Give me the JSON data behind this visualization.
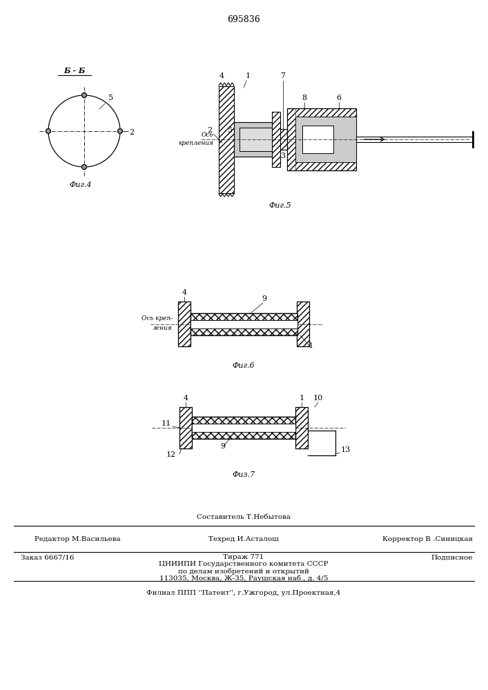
{
  "patent_number": "695836",
  "bg_color": "#ffffff",
  "line_color": "#000000",
  "fig4_label": "Фиг.4",
  "fig5_label": "Фиг.5",
  "fig6_label": "Фиг.6",
  "fig7_label": "Физ.7",
  "section_label": "Б - Б",
  "axis_label_1": "Ось",
  "axis_label_2": "крепления",
  "axis_label_6_1": "Ось креп-",
  "axis_label_6_2": "ления",
  "footer_line0_center": "Составитель Т.Небытова",
  "footer_line1_left": "Редактор М.Васильева",
  "footer_line1_center": "Техред И.Асталош",
  "footer_line1_right": "Корректор В .Синицкая",
  "footer_line2_left": "Заказ 6667/16",
  "footer_line2_center": "Тираж 771",
  "footer_line2_right": "Подписное",
  "footer_line3": "ЦНИИПИ Государственного комитета СССР",
  "footer_line4": "по делам изобретений и открытий",
  "footer_line5": "113035, Москва, Ж-35, Раушская наб., д. 4/5",
  "footer_line6": "Филиал ППП ''Патент'', г.Ужгород, ул.Проектная,4"
}
